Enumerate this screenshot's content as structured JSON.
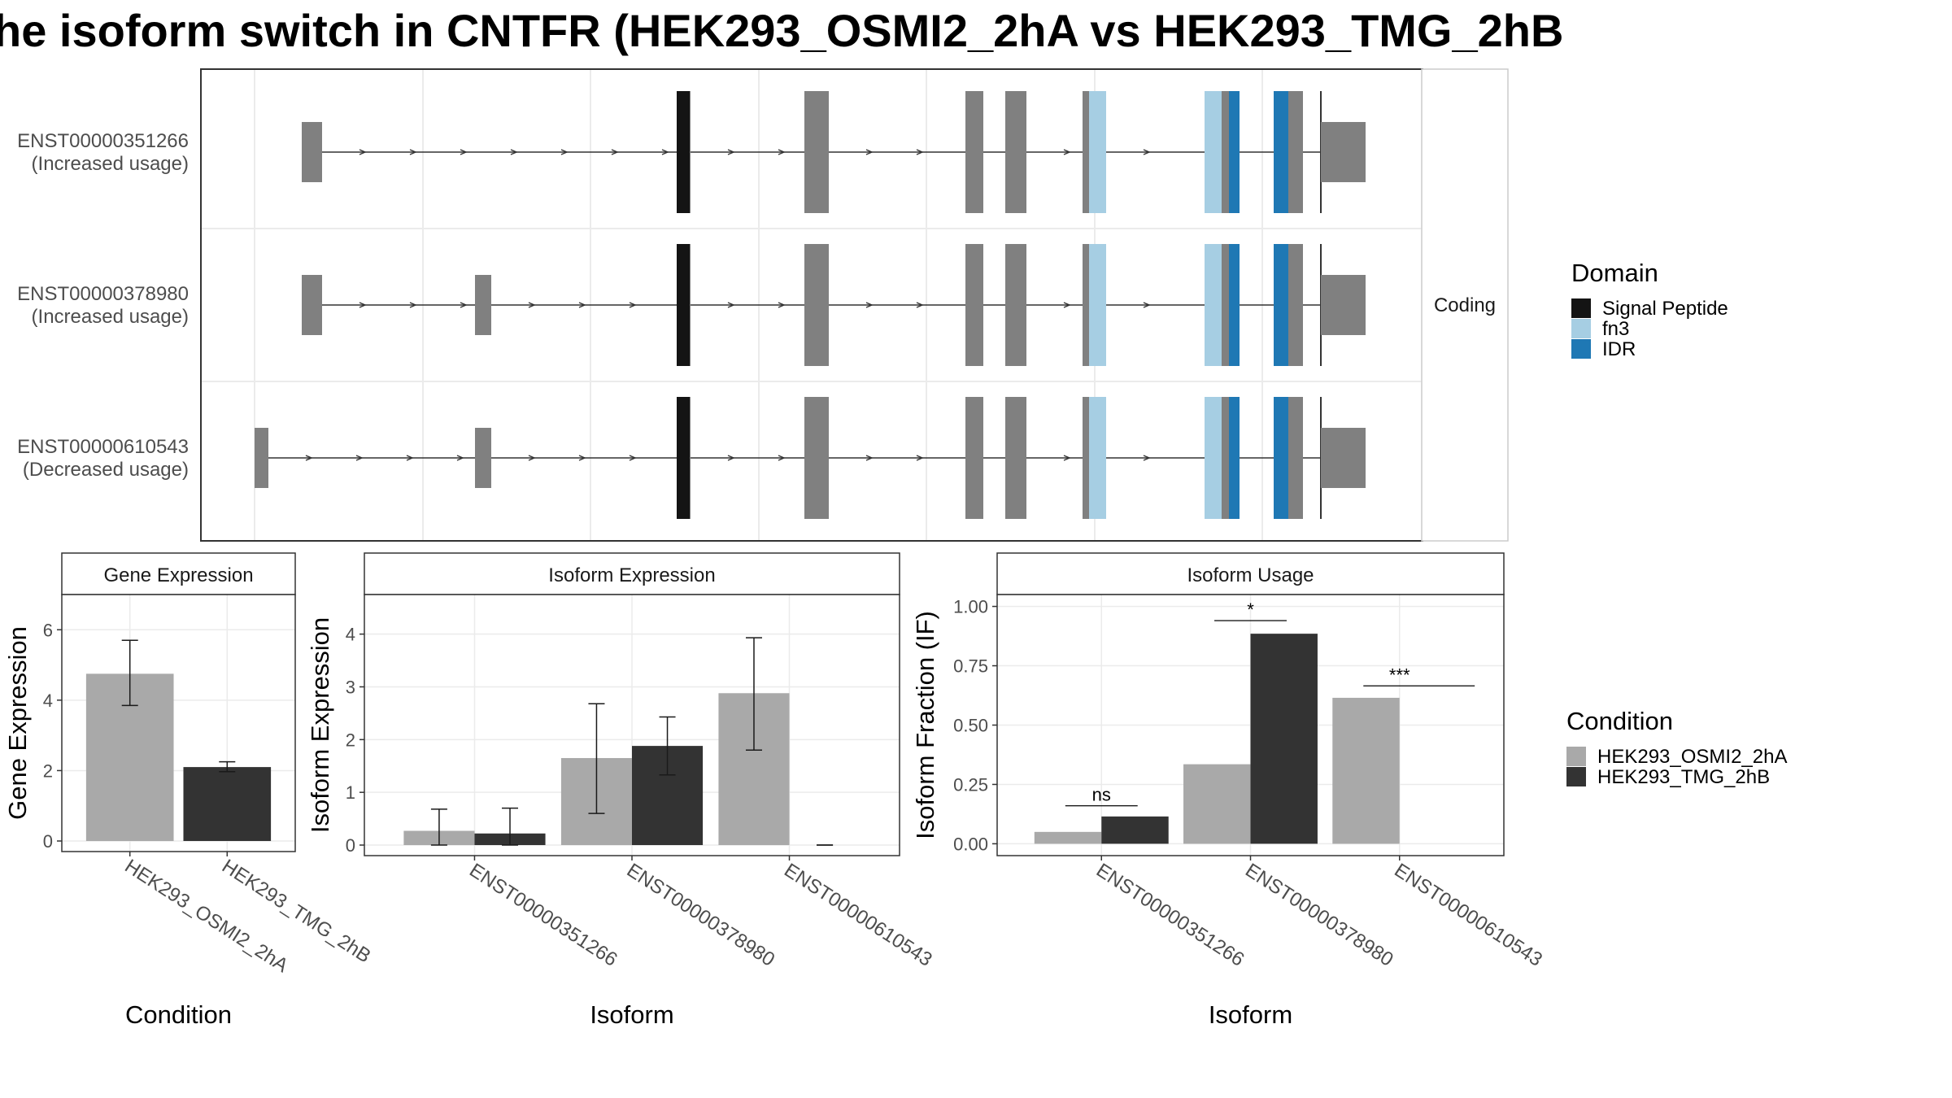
{
  "title": "he isoform switch in CNTFR (HEK293_OSMI2_2hA vs HEK293_TMG_2hB",
  "colors": {
    "exon": "#808080",
    "signal_peptide": "#141414",
    "fn3": "#a6cee3",
    "idr": "#1f78b4",
    "cond_a": "#a9a9a9",
    "cond_b": "#333333",
    "grid": "#ebebeb",
    "strip_fill": "#ffffff"
  },
  "structure": {
    "strip_label": "Coding",
    "isoforms": [
      {
        "id": "ENST00000351266",
        "note": "(Increased usage)"
      },
      {
        "id": "ENST00000378980",
        "note": "(Increased usage)"
      },
      {
        "id": "ENST00000610543",
        "note": "(Decreased usage)"
      }
    ]
  },
  "domain_legend": {
    "title": "Domain",
    "items": [
      {
        "label": "Signal Peptide",
        "color": "#141414"
      },
      {
        "label": "fn3",
        "color": "#a6cee3"
      },
      {
        "label": "IDR",
        "color": "#1f78b4"
      }
    ]
  },
  "condition_legend": {
    "title": "Condition",
    "items": [
      {
        "label": "HEK293_OSMI2_2hA",
        "color": "#a9a9a9"
      },
      {
        "label": "HEK293_TMG_2hB",
        "color": "#333333"
      }
    ]
  },
  "chart_data": [
    {
      "type": "bar",
      "title": "Gene Expression",
      "xlabel": "Condition",
      "ylabel": "Gene Expression",
      "ylim": [
        -0.3,
        7.0
      ],
      "yticks": [
        "0",
        "2",
        "4",
        "6"
      ],
      "categories": [
        "HEK293_OSMI2_2hA",
        "HEK293_TMG_2hB"
      ],
      "values": [
        4.75,
        2.1
      ],
      "error_low": [
        3.85,
        1.97
      ],
      "error_high": [
        5.7,
        2.25
      ]
    },
    {
      "type": "bar",
      "title": "Isoform Expression",
      "xlabel": "Isoform",
      "ylabel": "Isoform Expression",
      "ylim": [
        -0.2,
        4.75
      ],
      "yticks": [
        "0",
        "1",
        "2",
        "3",
        "4"
      ],
      "categories": [
        "ENST00000351266",
        "ENST00000378980",
        "ENST00000610543"
      ],
      "series": [
        {
          "name": "HEK293_OSMI2_2hA",
          "values": [
            0.27,
            1.65,
            2.88
          ],
          "error_low": [
            0.0,
            0.6,
            1.8
          ],
          "error_high": [
            0.68,
            2.68,
            3.93
          ]
        },
        {
          "name": "HEK293_TMG_2hB",
          "values": [
            0.22,
            1.88,
            0.0
          ],
          "error_low": [
            0.0,
            1.33,
            0.0
          ],
          "error_high": [
            0.7,
            2.43,
            0.0
          ]
        }
      ]
    },
    {
      "type": "bar",
      "title": "Isoform Usage",
      "xlabel": "Isoform",
      "ylabel": "Isoform Fraction (IF)",
      "ylim": [
        -0.05,
        1.05
      ],
      "yticks": [
        "0.00",
        "0.25",
        "0.50",
        "0.75",
        "1.00"
      ],
      "categories": [
        "ENST00000351266",
        "ENST00000378980",
        "ENST00000610543"
      ],
      "series": [
        {
          "name": "HEK293_OSMI2_2hA",
          "values": [
            0.05,
            0.335,
            0.615
          ]
        },
        {
          "name": "HEK293_TMG_2hB",
          "values": [
            0.115,
            0.885,
            0.0
          ]
        }
      ],
      "significance": [
        "ns",
        "*",
        "***"
      ],
      "significance_y": [
        0.16,
        0.94,
        0.665
      ]
    }
  ]
}
